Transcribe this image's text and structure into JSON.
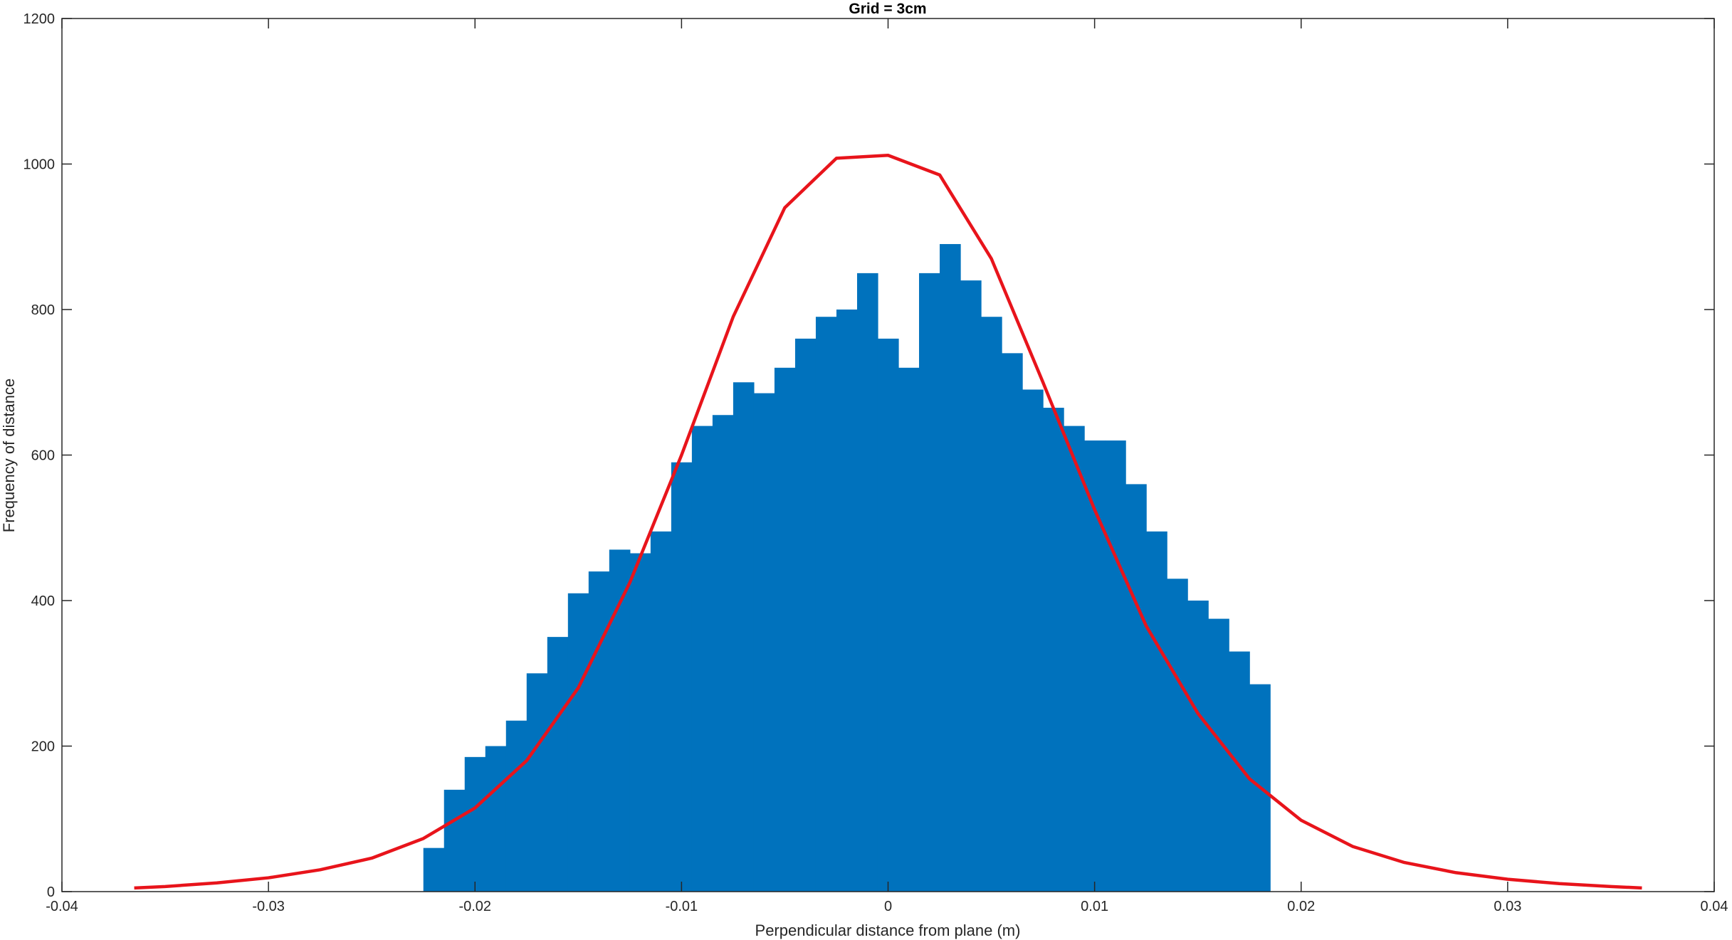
{
  "chart_data": {
    "type": "bar",
    "title": "Grid = 3cm",
    "xlabel": "Perpendicular distance from plane (m)",
    "ylabel": "Frequency of distance",
    "xlim": [
      -0.04,
      0.04
    ],
    "ylim": [
      0,
      1200
    ],
    "xticks": [
      -0.04,
      -0.03,
      -0.02,
      -0.01,
      0,
      0.01,
      0.02,
      0.03,
      0.04
    ],
    "xtick_labels": [
      "-0.04",
      "-0.03",
      "-0.02",
      "-0.01",
      "0",
      "0.01",
      "0.02",
      "0.03",
      "0.04"
    ],
    "yticks": [
      0,
      200,
      400,
      600,
      800,
      1000,
      1200
    ],
    "ytick_labels": [
      "0",
      "200",
      "400",
      "600",
      "800",
      "1000",
      "1200"
    ],
    "grid": false,
    "colors": {
      "histogram": "#0072BD",
      "fit": "#E8141B",
      "axes": "#262626"
    },
    "series": [
      {
        "type": "histogram",
        "bin_centers": [
          -0.022,
          -0.021,
          -0.02,
          -0.019,
          -0.018,
          -0.017,
          -0.016,
          -0.015,
          -0.014,
          -0.013,
          -0.012,
          -0.011,
          -0.01,
          -0.009,
          -0.008,
          -0.007,
          -0.006,
          -0.005,
          -0.004,
          -0.003,
          -0.002,
          -0.001,
          0,
          0.001,
          0.002,
          0.003,
          0.004,
          0.005,
          0.006,
          0.007,
          0.008,
          0.009,
          0.01,
          0.011,
          0.012,
          0.013,
          0.014,
          0.015,
          0.016,
          0.017,
          0.018
        ],
        "values": [
          60,
          140,
          185,
          200,
          235,
          300,
          350,
          410,
          440,
          470,
          465,
          495,
          590,
          640,
          655,
          700,
          685,
          720,
          760,
          790,
          800,
          850,
          760,
          720,
          850,
          890,
          840,
          790,
          740,
          690,
          665,
          640,
          620,
          620,
          560,
          495,
          430,
          400,
          375,
          330,
          285
        ]
      },
      {
        "type": "line",
        "x": [
          -0.0365,
          -0.035,
          -0.0325,
          -0.03,
          -0.0275,
          -0.025,
          -0.0225,
          -0.02,
          -0.0175,
          -0.015,
          -0.0125,
          -0.01,
          -0.0075,
          -0.005,
          -0.0025,
          0,
          0.0025,
          0.005,
          0.0075,
          0.01,
          0.0125,
          0.015,
          0.0175,
          0.02,
          0.0225,
          0.025,
          0.0275,
          0.03,
          0.0325,
          0.035,
          0.0365
        ],
        "y": [
          5,
          7,
          12,
          19,
          30,
          46,
          73,
          115,
          180,
          280,
          425,
          600,
          790,
          940,
          1008,
          1012,
          985,
          870,
          700,
          525,
          365,
          245,
          155,
          98,
          62,
          40,
          26,
          17,
          11,
          7,
          5
        ]
      }
    ]
  }
}
